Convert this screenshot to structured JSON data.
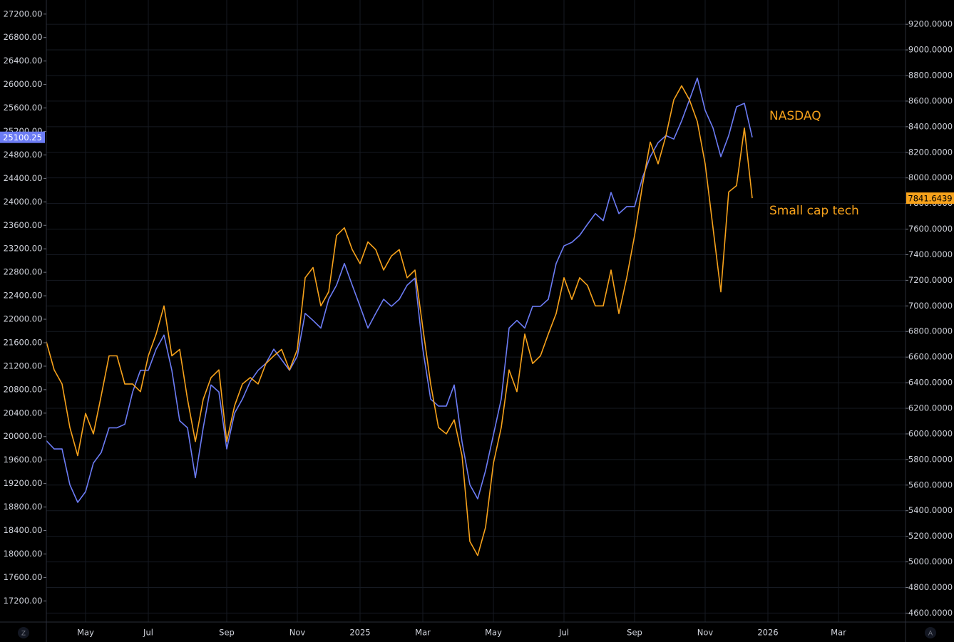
{
  "chart_data": {
    "type": "line",
    "categories": [
      null,
      null,
      null,
      null,
      null,
      "May",
      null,
      null,
      null,
      null,
      null,
      null,
      null,
      "Jul",
      null,
      null,
      null,
      null,
      null,
      null,
      null,
      null,
      null,
      "Sep",
      null,
      null,
      null,
      null,
      null,
      null,
      null,
      null,
      "Nov",
      null,
      null,
      null,
      null,
      null,
      null,
      null,
      "2025",
      null,
      null,
      null,
      null,
      null,
      null,
      null,
      "Mar",
      null,
      null,
      null,
      null,
      null,
      null,
      null,
      null,
      "May",
      null,
      null,
      null,
      null,
      null,
      null,
      null,
      null,
      "Jul",
      null,
      null,
      null,
      null,
      null,
      null,
      null,
      null,
      "Sep",
      null,
      null,
      null,
      null,
      null,
      null,
      null,
      null,
      "Nov",
      null,
      null,
      null,
      null,
      null,
      null,
      null,
      "2026",
      null,
      null,
      null,
      null,
      null,
      null,
      null,
      null,
      "Mar",
      null,
      null,
      null,
      null,
      null,
      null,
      null,
      null
    ],
    "series": [
      {
        "name": "NASDAQ",
        "color": "#6c7cf5",
        "axis": "y",
        "values": [
          19930,
          19790,
          19790,
          19180,
          18880,
          19060,
          19550,
          19730,
          20150,
          20150,
          20210,
          20760,
          21130,
          21130,
          21490,
          21730,
          21130,
          20270,
          20150,
          19300,
          20150,
          20880,
          20760,
          19790,
          20400,
          20640,
          20940,
          21130,
          21250,
          21490,
          21310,
          21130,
          21370,
          22100,
          21980,
          21850,
          22340,
          22580,
          22950,
          22580,
          22220,
          21850,
          22100,
          22340,
          22220,
          22340,
          22580,
          22700,
          21490,
          20640,
          20520,
          20520,
          20880,
          19910,
          19180,
          18940,
          19420,
          20030,
          20640,
          21850,
          21980,
          21850,
          22220,
          22220,
          22340,
          22950,
          23250,
          23310,
          23430,
          23620,
          23800,
          23680,
          24160,
          23800,
          23920,
          23920,
          24410,
          24770,
          25010,
          25130,
          25070,
          25380,
          25740,
          26110,
          25560,
          25260,
          24770,
          25130,
          25620,
          25680,
          25100.25,
          null,
          null,
          null,
          null,
          null,
          null,
          null,
          null,
          null,
          null,
          null,
          null,
          null,
          null,
          null,
          null,
          null,
          null,
          null
        ]
      },
      {
        "name": "Small cap tech",
        "color": "#f7a21b",
        "axis": "y2",
        "values": [
          6720,
          6500,
          6390,
          6050,
          5830,
          6160,
          6000,
          6300,
          6610,
          6610,
          6390,
          6390,
          6330,
          6610,
          6780,
          7000,
          6610,
          6660,
          6270,
          5940,
          6270,
          6440,
          6500,
          5940,
          6220,
          6390,
          6440,
          6390,
          6550,
          6610,
          6660,
          6500,
          6660,
          7220,
          7300,
          7000,
          7110,
          7550,
          7610,
          7440,
          7330,
          7500,
          7440,
          7280,
          7390,
          7440,
          7220,
          7280,
          6830,
          6390,
          6050,
          6000,
          6110,
          5830,
          5160,
          5050,
          5270,
          5770,
          6050,
          6500,
          6330,
          6780,
          6550,
          6610,
          6780,
          6940,
          7220,
          7050,
          7220,
          7160,
          7000,
          7000,
          7280,
          6940,
          7220,
          7550,
          7940,
          8280,
          8110,
          8330,
          8610,
          8720,
          8610,
          8440,
          8110,
          7610,
          7110,
          7890,
          7940,
          8390,
          7841.6439,
          null,
          null,
          null,
          null,
          null,
          null,
          null,
          null,
          null,
          null,
          null,
          null,
          null,
          null,
          null,
          null,
          null,
          null,
          null
        ]
      }
    ],
    "label_color": "#f7a21b",
    "ylim": [
      16840,
      27440
    ],
    "yticks": [
      {
        "value": 17200,
        "label": "17200.00"
      },
      {
        "value": 17600,
        "label": "17600.00"
      },
      {
        "value": 18000,
        "label": "18000.00"
      },
      {
        "value": 18400,
        "label": "18400.00"
      },
      {
        "value": 18800,
        "label": "18800.00"
      },
      {
        "value": 19200,
        "label": "19200.00"
      },
      {
        "value": 19600,
        "label": "19600.00"
      },
      {
        "value": 20000,
        "label": "20000.00"
      },
      {
        "value": 20400,
        "label": "20400.00"
      },
      {
        "value": 20800,
        "label": "20800.00"
      },
      {
        "value": 21200,
        "label": "21200.00"
      },
      {
        "value": 21600,
        "label": "21600.00"
      },
      {
        "value": 22000,
        "label": "22000.00"
      },
      {
        "value": 22400,
        "label": "22400.00"
      },
      {
        "value": 22800,
        "label": "22800.00"
      },
      {
        "value": 23200,
        "label": "23200.00"
      },
      {
        "value": 23600,
        "label": "23600.00"
      },
      {
        "value": 24000,
        "label": "24000.00"
      },
      {
        "value": 24400,
        "label": "24400.00"
      },
      {
        "value": 24800,
        "label": "24800.00"
      },
      {
        "value": 25200,
        "label": "25200.00"
      },
      {
        "value": 25600,
        "label": "25600.00"
      },
      {
        "value": 26000,
        "label": "26000.00"
      },
      {
        "value": 26400,
        "label": "26400.00"
      },
      {
        "value": 26800,
        "label": "26800.00"
      },
      {
        "value": 27200,
        "label": "27200.00"
      }
    ],
    "y2lim": [
      4530,
      9390
    ],
    "y2ticks": [
      {
        "value": 4600,
        "label": "4600.0000"
      },
      {
        "value": 4800,
        "label": "4800.0000"
      },
      {
        "value": 5000,
        "label": "5000.0000"
      },
      {
        "value": 5200,
        "label": "5200.0000"
      },
      {
        "value": 5400,
        "label": "5400.0000"
      },
      {
        "value": 5600,
        "label": "5600.0000"
      },
      {
        "value": 5800,
        "label": "5800.0000"
      },
      {
        "value": 6000,
        "label": "6000.0000"
      },
      {
        "value": 6200,
        "label": "6200.0000"
      },
      {
        "value": 6400,
        "label": "6400.0000"
      },
      {
        "value": 6600,
        "label": "6600.0000"
      },
      {
        "value": 6800,
        "label": "6800.0000"
      },
      {
        "value": 7000,
        "label": "7000.0000"
      },
      {
        "value": 7200,
        "label": "7200.0000"
      },
      {
        "value": 7400,
        "label": "7400.0000"
      },
      {
        "value": 7600,
        "label": "7600.0000"
      },
      {
        "value": 7800,
        "label": "7800.0000"
      },
      {
        "value": 8000,
        "label": "8000.0000"
      },
      {
        "value": 8200,
        "label": "8200.0000"
      },
      {
        "value": 8400,
        "label": "8400.0000"
      },
      {
        "value": 8600,
        "label": "8600.0000"
      },
      {
        "value": 8800,
        "label": "8800.0000"
      },
      {
        "value": 9000,
        "label": "9000.0000"
      },
      {
        "value": 9200,
        "label": "9200.0000"
      }
    ],
    "grid": true,
    "left_button": "Z",
    "right_button": "A"
  }
}
